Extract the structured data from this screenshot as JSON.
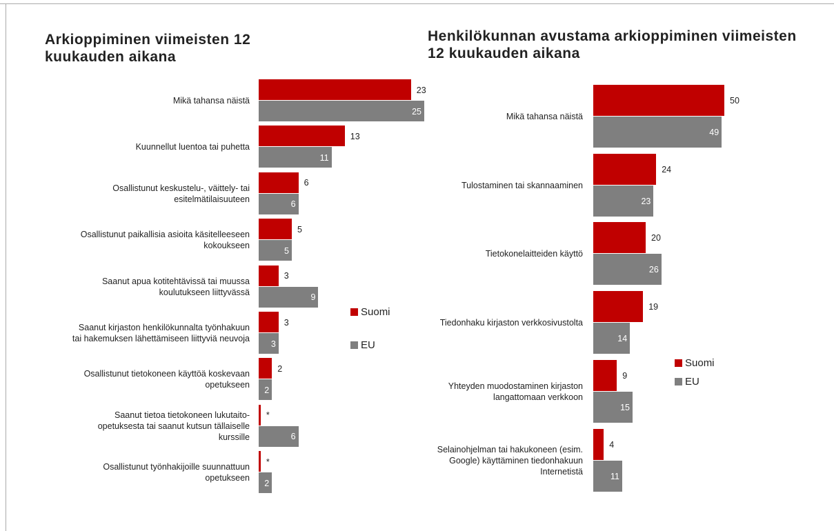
{
  "chart_data": [
    {
      "type": "bar",
      "orientation": "horizontal",
      "title": "Arkioppiminen viimeisten 12 kuukauden aikana",
      "categories": [
        "Mikä tahansa näistä",
        "Kuunnellut luentoa tai puhetta",
        "Osallistunut keskustelu-, väittely- tai esitelmätilaisuuteen",
        "Osallistunut paikallisia asioita käsitelleeseen kokoukseen",
        "Saanut apua kotitehtävissä tai muussa koulutukseen liittyvässä",
        "Saanut kirjaston henkilökunnalta työnhakuun tai hakemuksen lähettämiseen liittyviä neuvoja",
        "Osallistunut tietokoneen käyttöä koskevaan opetukseen",
        "Saanut tietoa tietokoneen lukutaito-opetuksesta tai saanut kutsun tällaiselle kurssille",
        "Osallistunut työnhakijoille suunnattuun opetukseen"
      ],
      "series": [
        {
          "name": "Suomi",
          "color": "#c00000",
          "values": [
            23,
            13,
            6,
            5,
            3,
            3,
            2,
            0.3,
            0.3
          ],
          "value_labels": [
            "23",
            "13",
            "6",
            "5",
            "3",
            "3",
            "2",
            "*",
            "*"
          ]
        },
        {
          "name": "EU",
          "color": "#7f7f7f",
          "values": [
            25,
            11,
            6,
            5,
            9,
            3,
            2,
            6,
            2
          ]
        }
      ]
    },
    {
      "type": "bar",
      "orientation": "horizontal",
      "title": "Henkilökunnan avustama arkioppiminen viimeisten 12 kuukauden aikana",
      "categories": [
        "Mikä tahansa näistä",
        "Tulostaminen tai skannaaminen",
        "Tietokonelaitteiden käyttö",
        "Tiedonhaku kirjaston verkkosivustolta",
        "Yhteyden muodostaminen kirjaston langattomaan verkkoon",
        "Selainohjelman tai hakukoneen (esim. Google) käyttäminen tiedonhakuun Internetistä"
      ],
      "series": [
        {
          "name": "Suomi",
          "color": "#c00000",
          "values": [
            50,
            24,
            20,
            19,
            9,
            4
          ]
        },
        {
          "name": "EU",
          "color": "#7f7f7f",
          "values": [
            49,
            23,
            26,
            14,
            15,
            11
          ]
        }
      ]
    }
  ]
}
